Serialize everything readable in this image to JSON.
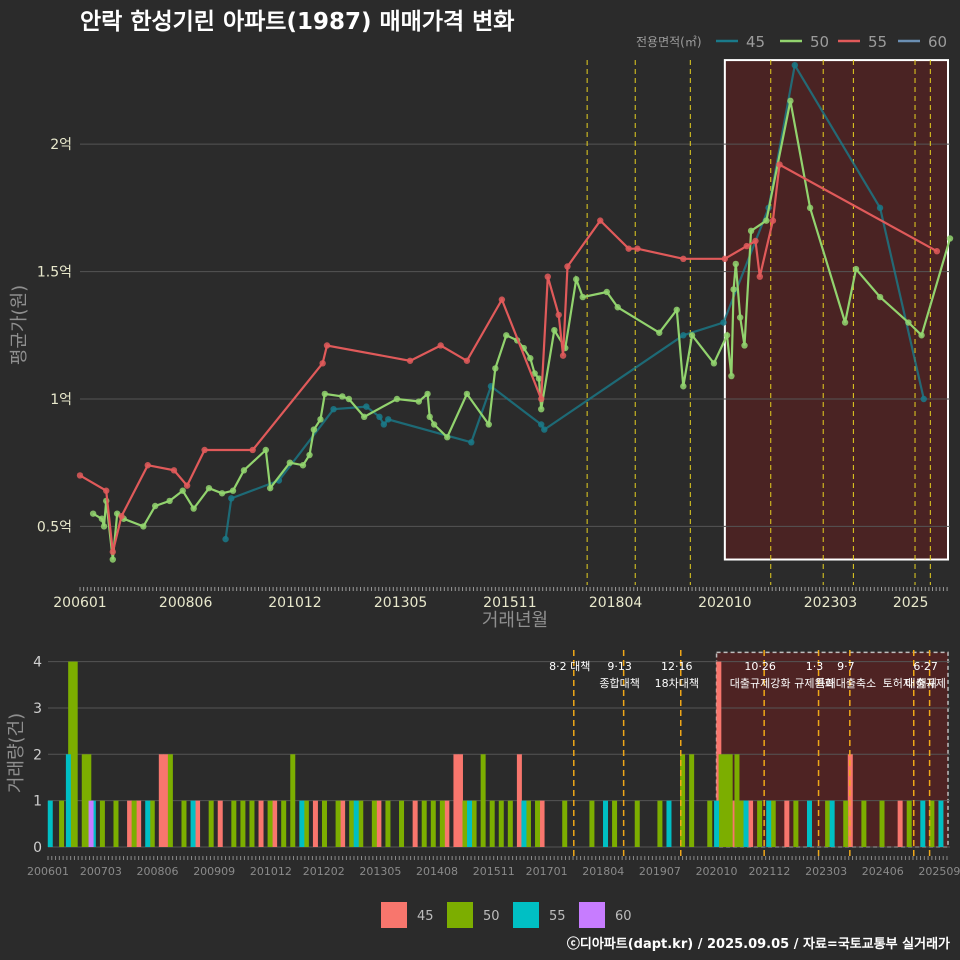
{
  "title": "안락 한성기린 아파트(1987) 매매가격 변화",
  "credit": "ⓒ디아파트(dapt.kr) / 2025.09.05 / 자료=국토교통부 실거래가",
  "colors": {
    "s45": "#1a7a8a",
    "s50": "#92d36e",
    "s55": "#e05a5a",
    "s60": "#6b8fb3",
    "b45": "#f8766d",
    "b50": "#7cae00",
    "b55": "#00bfc4",
    "b60": "#c77cff",
    "vline": "#e6d020",
    "vline2": "#f0a818",
    "highlight": "#7a1a1a"
  },
  "chart_data": [
    {
      "type": "line",
      "title": "안락 한성기린 아파트(1987) 매매가격 변화",
      "xlabel": "거래년월",
      "ylabel": "평균가(원)",
      "legend_title": "전용면적(㎡)",
      "x_ticks": [
        "200601",
        "200806",
        "201012",
        "201305",
        "201511",
        "201804",
        "202010",
        "202303",
        "2025"
      ],
      "y_ticks": [
        {
          "v": 0.5,
          "label": "0.5억"
        },
        {
          "v": 1.0,
          "label": "1억"
        },
        {
          "v": 1.5,
          "label": "1.5억"
        },
        {
          "v": 2.0,
          "label": "2억"
        }
      ],
      "ylim": [
        0.27,
        2.35
      ],
      "xlim": [
        2006.0,
        2025.9
      ],
      "policy_dates": [
        2017.6,
        2018.7,
        2019.96,
        2021.8,
        2023.0,
        2023.69,
        2025.1,
        2025.45
      ],
      "highlight": {
        "from": 2020.75,
        "to": 2025.9
      },
      "series": [
        {
          "name": "45",
          "points": [
            [
              2009.33,
              0.45
            ],
            [
              2009.46,
              0.61
            ],
            [
              2010.55,
              0.68
            ],
            [
              2011.8,
              0.96
            ],
            [
              2012.55,
              0.97
            ],
            [
              2012.85,
              0.93
            ],
            [
              2012.95,
              0.9
            ],
            [
              2013.05,
              0.92
            ],
            [
              2014.95,
              0.83
            ],
            [
              2015.4,
              1.05
            ],
            [
              2016.55,
              0.9
            ],
            [
              2016.62,
              0.88
            ],
            [
              2019.8,
              1.25
            ],
            [
              2020.72,
              1.3
            ],
            [
              2021.75,
              1.75
            ],
            [
              2022.35,
              2.31
            ],
            [
              2024.3,
              1.75
            ],
            [
              2025.3,
              1.0
            ]
          ]
        },
        {
          "name": "50",
          "points": [
            [
              2006.3,
              0.55
            ],
            [
              2006.5,
              0.53
            ],
            [
              2006.55,
              0.5
            ],
            [
              2006.6,
              0.6
            ],
            [
              2006.75,
              0.37
            ],
            [
              2006.85,
              0.55
            ],
            [
              2007.0,
              0.53
            ],
            [
              2007.45,
              0.5
            ],
            [
              2007.72,
              0.58
            ],
            [
              2008.05,
              0.6
            ],
            [
              2008.35,
              0.64
            ],
            [
              2008.6,
              0.57
            ],
            [
              2008.95,
              0.65
            ],
            [
              2009.25,
              0.63
            ],
            [
              2009.5,
              0.64
            ],
            [
              2009.75,
              0.72
            ],
            [
              2010.25,
              0.8
            ],
            [
              2010.35,
              0.65
            ],
            [
              2010.8,
              0.75
            ],
            [
              2011.1,
              0.74
            ],
            [
              2011.25,
              0.78
            ],
            [
              2011.35,
              0.88
            ],
            [
              2011.5,
              0.92
            ],
            [
              2011.6,
              1.02
            ],
            [
              2012.0,
              1.01
            ],
            [
              2012.15,
              1.0
            ],
            [
              2012.5,
              0.93
            ],
            [
              2013.25,
              1.0
            ],
            [
              2013.75,
              0.99
            ],
            [
              2013.95,
              1.02
            ],
            [
              2014.0,
              0.93
            ],
            [
              2014.1,
              0.9
            ],
            [
              2014.4,
              0.85
            ],
            [
              2014.85,
              1.02
            ],
            [
              2015.35,
              0.9
            ],
            [
              2015.5,
              1.12
            ],
            [
              2015.75,
              1.25
            ],
            [
              2016.0,
              1.23
            ],
            [
              2016.15,
              1.2
            ],
            [
              2016.3,
              1.16
            ],
            [
              2016.4,
              1.1
            ],
            [
              2016.5,
              1.08
            ],
            [
              2016.55,
              0.96
            ],
            [
              2016.85,
              1.27
            ],
            [
              2017.1,
              1.2
            ],
            [
              2017.35,
              1.47
            ],
            [
              2017.5,
              1.4
            ],
            [
              2018.05,
              1.42
            ],
            [
              2018.3,
              1.36
            ],
            [
              2019.25,
              1.26
            ],
            [
              2019.65,
              1.35
            ],
            [
              2019.8,
              1.05
            ],
            [
              2020.0,
              1.25
            ],
            [
              2020.5,
              1.14
            ],
            [
              2020.8,
              1.25
            ],
            [
              2020.9,
              1.09
            ],
            [
              2020.95,
              1.43
            ],
            [
              2021.0,
              1.53
            ],
            [
              2021.1,
              1.32
            ],
            [
              2021.2,
              1.21
            ],
            [
              2021.35,
              1.66
            ],
            [
              2021.7,
              1.7
            ],
            [
              2022.25,
              2.17
            ],
            [
              2022.7,
              1.75
            ],
            [
              2023.5,
              1.3
            ],
            [
              2023.75,
              1.51
            ],
            [
              2024.3,
              1.4
            ],
            [
              2024.95,
              1.3
            ],
            [
              2025.25,
              1.25
            ],
            [
              2025.9,
              1.63
            ]
          ]
        },
        {
          "name": "55",
          "points": [
            [
              2006.0,
              0.7
            ],
            [
              2006.6,
              0.64
            ],
            [
              2006.75,
              0.4
            ],
            [
              2006.95,
              0.54
            ],
            [
              2007.55,
              0.74
            ],
            [
              2008.15,
              0.72
            ],
            [
              2008.45,
              0.66
            ],
            [
              2008.85,
              0.8
            ],
            [
              2009.95,
              0.8
            ],
            [
              2011.55,
              1.14
            ],
            [
              2011.65,
              1.21
            ],
            [
              2013.55,
              1.15
            ],
            [
              2014.25,
              1.21
            ],
            [
              2014.85,
              1.15
            ],
            [
              2015.65,
              1.39
            ],
            [
              2016.55,
              1.0
            ],
            [
              2016.7,
              1.48
            ],
            [
              2016.95,
              1.33
            ],
            [
              2017.05,
              1.17
            ],
            [
              2017.15,
              1.52
            ],
            [
              2017.9,
              1.7
            ],
            [
              2018.55,
              1.59
            ],
            [
              2018.75,
              1.59
            ],
            [
              2019.8,
              1.55
            ],
            [
              2020.75,
              1.55
            ],
            [
              2021.25,
              1.6
            ],
            [
              2021.45,
              1.62
            ],
            [
              2021.55,
              1.48
            ],
            [
              2021.85,
              1.7
            ],
            [
              2022.0,
              1.92
            ],
            [
              2025.6,
              1.58
            ]
          ]
        },
        {
          "name": "60",
          "points": []
        }
      ]
    },
    {
      "type": "bar",
      "ylabel": "거래량(건)",
      "x_ticks": [
        "200601",
        "200703",
        "200806",
        "200909",
        "201012",
        "201202",
        "201305",
        "201408",
        "201511",
        "201701",
        "201804",
        "201907",
        "202010",
        "202112",
        "202303",
        "202406",
        "202509"
      ],
      "y_ticks": [
        0,
        1,
        2,
        3,
        4
      ],
      "ylim": [
        0,
        4.25
      ],
      "annotations": [
        {
          "x": 2017.6,
          "lines": [
            "8·2 대책"
          ]
        },
        {
          "x": 2018.7,
          "lines": [
            "9·13",
            "종합대책"
          ]
        },
        {
          "x": 2019.96,
          "lines": [
            "12·16",
            "18차대책"
          ]
        },
        {
          "x": 2021.8,
          "lines": [
            "10·26",
            "대출규제강화"
          ]
        },
        {
          "x": 2023.0,
          "lines": [
            "1·3",
            "규제완화"
          ]
        },
        {
          "x": 2023.69,
          "lines": [
            "9·7",
            "특례대출축소"
          ]
        },
        {
          "x": 2025.1,
          "lines": [
            "",
            "토허제 해제"
          ]
        },
        {
          "x": 2025.45,
          "lines": [
            "6·27",
            "대출규제"
          ]
        }
      ],
      "series": [
        {
          "name": "45",
          "bars": [
            [
              2007.8,
              1
            ],
            [
              2008.0,
              1
            ],
            [
              2008.5,
              2
            ],
            [
              2008.6,
              2
            ],
            [
              2009.3,
              1
            ],
            [
              2009.8,
              1
            ],
            [
              2010.7,
              1
            ],
            [
              2011.0,
              1
            ],
            [
              2011.9,
              1
            ],
            [
              2012.5,
              1
            ],
            [
              2013.3,
              1
            ],
            [
              2014.1,
              1
            ],
            [
              2014.8,
              1
            ],
            [
              2015.0,
              2
            ],
            [
              2015.1,
              2
            ],
            [
              2016.4,
              2
            ],
            [
              2016.9,
              1
            ],
            [
              2020.8,
              4
            ],
            [
              2021.1,
              1
            ],
            [
              2021.5,
              1
            ],
            [
              2022.3,
              1
            ],
            [
              2023.7,
              2
            ],
            [
              2024.8,
              1
            ]
          ]
        },
        {
          "name": "50",
          "bars": [
            [
              2006.3,
              1
            ],
            [
              2006.5,
              4
            ],
            [
              2006.6,
              4
            ],
            [
              2006.8,
              2
            ],
            [
              2006.9,
              2
            ],
            [
              2007.2,
              1
            ],
            [
              2007.5,
              1
            ],
            [
              2007.9,
              1
            ],
            [
              2008.3,
              1
            ],
            [
              2008.7,
              2
            ],
            [
              2009.0,
              1
            ],
            [
              2009.6,
              1
            ],
            [
              2010.1,
              1
            ],
            [
              2010.3,
              1
            ],
            [
              2010.5,
              1
            ],
            [
              2010.9,
              1
            ],
            [
              2011.2,
              1
            ],
            [
              2011.4,
              2
            ],
            [
              2011.7,
              1
            ],
            [
              2012.1,
              1
            ],
            [
              2012.4,
              1
            ],
            [
              2012.7,
              1
            ],
            [
              2012.9,
              1
            ],
            [
              2013.2,
              1
            ],
            [
              2013.5,
              1
            ],
            [
              2013.8,
              1
            ],
            [
              2014.3,
              1
            ],
            [
              2014.5,
              1
            ],
            [
              2014.7,
              1
            ],
            [
              2015.2,
              1
            ],
            [
              2015.4,
              1
            ],
            [
              2015.6,
              2
            ],
            [
              2015.8,
              1
            ],
            [
              2016.0,
              1
            ],
            [
              2016.2,
              1
            ],
            [
              2016.6,
              1
            ],
            [
              2016.8,
              1
            ],
            [
              2017.4,
              1
            ],
            [
              2018.0,
              1
            ],
            [
              2018.5,
              1
            ],
            [
              2019.0,
              1
            ],
            [
              2019.5,
              1
            ],
            [
              2020.0,
              2
            ],
            [
              2020.2,
              2
            ],
            [
              2020.6,
              1
            ],
            [
              2020.85,
              2
            ],
            [
              2020.95,
              2
            ],
            [
              2021.05,
              2
            ],
            [
              2021.2,
              2
            ],
            [
              2021.3,
              1
            ],
            [
              2021.7,
              1
            ],
            [
              2022.0,
              1
            ],
            [
              2022.5,
              1
            ],
            [
              2023.2,
              1
            ],
            [
              2023.6,
              1
            ],
            [
              2024.0,
              1
            ],
            [
              2024.4,
              1
            ],
            [
              2025.0,
              1
            ],
            [
              2025.5,
              1
            ]
          ]
        },
        {
          "name": "55",
          "bars": [
            [
              2006.05,
              1
            ],
            [
              2006.45,
              2
            ],
            [
              2007.0,
              1
            ],
            [
              2008.2,
              1
            ],
            [
              2009.2,
              1
            ],
            [
              2011.6,
              1
            ],
            [
              2012.8,
              1
            ],
            [
              2015.3,
              1
            ],
            [
              2016.5,
              1
            ],
            [
              2018.3,
              1
            ],
            [
              2019.7,
              1
            ],
            [
              2020.75,
              1
            ],
            [
              2021.4,
              1
            ],
            [
              2021.9,
              1
            ],
            [
              2022.8,
              1
            ],
            [
              2023.3,
              1
            ],
            [
              2025.3,
              1
            ],
            [
              2025.7,
              1
            ]
          ]
        },
        {
          "name": "60",
          "bars": [
            [
              2006.95,
              1
            ]
          ]
        }
      ]
    }
  ]
}
